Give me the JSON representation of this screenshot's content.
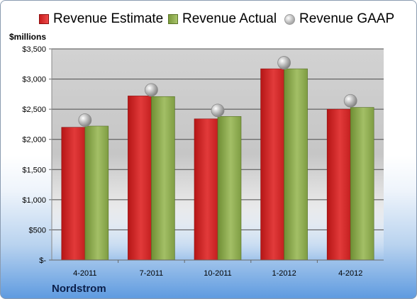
{
  "chart_data": {
    "type": "bar",
    "categories": [
      "4-2011",
      "7-2011",
      "10-2011",
      "1-2012",
      "4-2012"
    ],
    "series": [
      {
        "name": "Revenue Estimate",
        "type": "bar",
        "values": [
          2200,
          2720,
          2340,
          3170,
          2500
        ]
      },
      {
        "name": "Revenue Actual",
        "type": "bar",
        "values": [
          2220,
          2710,
          2380,
          3170,
          2530
        ]
      },
      {
        "name": "Revenue GAAP",
        "type": "scatter",
        "values": [
          2320,
          2820,
          2480,
          3270,
          2640
        ]
      }
    ],
    "ylabel": "$millions",
    "ylim": [
      0,
      3500
    ],
    "yticks": [
      0,
      500,
      1000,
      1500,
      2000,
      2500,
      3000,
      3500
    ],
    "ytick_labels": [
      "$-",
      "$500",
      "$1,000",
      "$1,500",
      "$2,000",
      "$2,500",
      "$3,000",
      "$3,500"
    ],
    "grid": true,
    "legend": "top",
    "colors": {
      "estimate": "#d42a2a",
      "actual": "#8fae52",
      "gaap": "#b0b0b0"
    }
  },
  "company": "Nordstrom"
}
